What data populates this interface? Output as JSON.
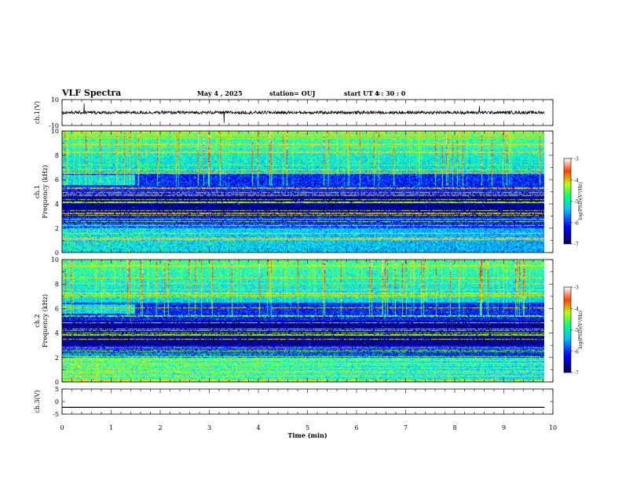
{
  "header": {
    "title": "VLF Spectra",
    "date": "May 4 , 2025",
    "station": "station= OUJ",
    "start_label": "start UT =",
    "start_time": "4 : 30 : 0"
  },
  "chart_data": [
    {
      "type": "line",
      "panel": "ch.1 waveform",
      "ylabel": "ch.1(V)",
      "ylim": [
        -10,
        10
      ],
      "yticks": [
        "10",
        "-10"
      ],
      "baseline": 0,
      "noise_amplitude": 1.2,
      "spikes": [
        {
          "x": 0.45,
          "y": 7
        },
        {
          "x": 3.3,
          "y": -8
        },
        {
          "x": 8.5,
          "y": 5
        }
      ]
    },
    {
      "type": "heatmap",
      "panel": "ch.1 spectrogram",
      "ylabel": "ch.1 Frequency (kHz)",
      "xlim": [
        0,
        9.83
      ],
      "ylim": [
        0,
        10
      ],
      "yticks": [
        "0",
        "2",
        "4",
        "6",
        "8",
        "10"
      ],
      "colorbar": {
        "label": "log(PSD)(V²/Hz)",
        "range": [
          -7,
          -3
        ],
        "ticks": [
          "-3",
          "-4",
          "-5",
          "-6",
          "-7"
        ]
      }
    },
    {
      "type": "heatmap",
      "panel": "ch.2 spectrogram",
      "ylabel": "ch.2 Frequency (kHz)",
      "xlim": [
        0,
        9.83
      ],
      "ylim": [
        0,
        10
      ],
      "yticks": [
        "0",
        "2",
        "4",
        "6",
        "8",
        "10"
      ],
      "colorbar": {
        "label": "log(PSD)(V²/Hz)",
        "range": [
          -7,
          -3
        ],
        "ticks": [
          "-3",
          "-4",
          "-5",
          "-6",
          "-7"
        ]
      }
    },
    {
      "type": "line",
      "panel": "ch.3 waveform",
      "ylabel": "ch.3(V)",
      "ylim": [
        -5,
        5
      ],
      "yticks": [
        "5",
        "0",
        "-5"
      ],
      "baseline": -2.3
    }
  ],
  "xaxis": {
    "label": "Time (min)",
    "range": [
      0,
      10
    ],
    "ticks": [
      "0",
      "1",
      "2",
      "3",
      "4",
      "5",
      "6",
      "7",
      "8",
      "9",
      "10"
    ]
  },
  "colors": {
    "colormap": [
      "#000080",
      "#0000ff",
      "#00a0ff",
      "#00ffff",
      "#40ff80",
      "#ffff00",
      "#ff8000",
      "#ff0000",
      "#ffffff"
    ]
  }
}
